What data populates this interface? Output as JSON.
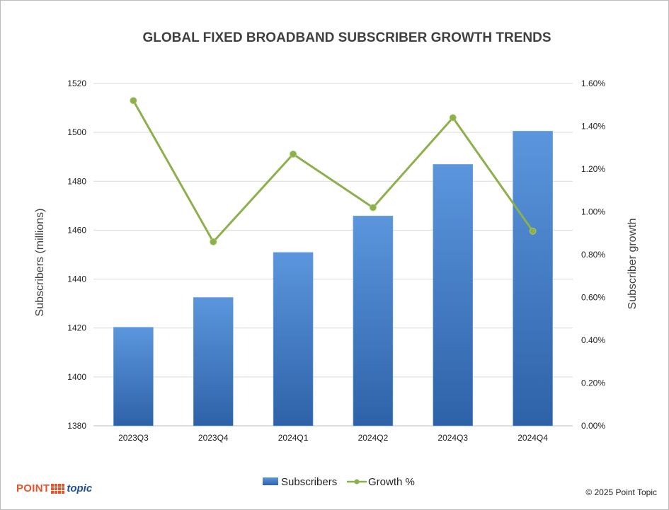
{
  "footer": {
    "brand_part1": "POINT",
    "brand_part2": "topic",
    "copyright": "© 2025 Point Topic"
  },
  "colors": {
    "bar_top": "#5b96dd",
    "bar_bottom": "#2e62a8",
    "line": "#8cb04b",
    "grid": "#d9d9d9",
    "brand_orange": "#e8532b",
    "brand_blue": "#1f4e9c"
  },
  "chart_data": {
    "type": "bar",
    "title": "GLOBAL FIXED BROADBAND SUBSCRIBER GROWTH TRENDS",
    "categories": [
      "2023Q3",
      "2023Q4",
      "2024Q1",
      "2024Q2",
      "2024Q3",
      "2024Q4"
    ],
    "series": [
      {
        "name": "Subscribers",
        "type": "bar",
        "axis": "left",
        "values": [
          1420.3,
          1432.5,
          1450.9,
          1465.8,
          1486.9,
          1500.5
        ]
      },
      {
        "name": "Growth %",
        "type": "line",
        "axis": "right",
        "values": [
          1.52,
          0.86,
          1.27,
          1.02,
          1.44,
          0.91
        ]
      }
    ],
    "ylabel": "Subscribers (millions)",
    "y2label": "Subscriber growth",
    "ylim": [
      1380,
      1520
    ],
    "y2lim": [
      0,
      1.6
    ],
    "yticks": [
      "1380",
      "1400",
      "1420",
      "1440",
      "1460",
      "1480",
      "1500",
      "1520"
    ],
    "y2ticks": [
      "0.00%",
      "0.20%",
      "0.40%",
      "0.60%",
      "0.80%",
      "1.00%",
      "1.20%",
      "1.40%",
      "1.60%"
    ],
    "grid": true,
    "legend_position": "bottom"
  }
}
